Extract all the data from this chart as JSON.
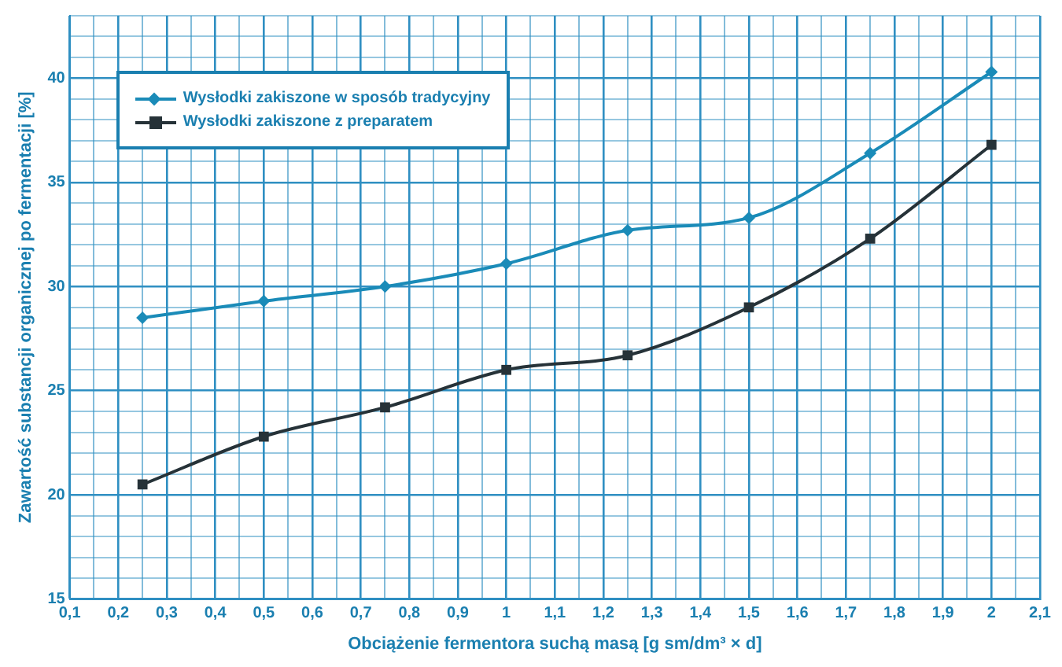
{
  "chart_data": {
    "type": "line",
    "xlabel": "Obciążenie fermentora suchą masą [g sm/dm³ × d]",
    "ylabel": "Zawartość substancji organicznej po fermentacji [%]",
    "x": [
      0.25,
      0.5,
      0.75,
      1,
      1.25,
      1.5,
      1.75,
      2
    ],
    "series": [
      {
        "name": "Wysłodki zakiszone w sposób tradycyjny",
        "color": "#1a8bb8",
        "marker": "diamond",
        "values": [
          28.5,
          29.3,
          30.0,
          31.1,
          32.7,
          33.3,
          36.4,
          40.3
        ]
      },
      {
        "name": "Wysłodki zakiszone z preparatem",
        "color": "#263238",
        "marker": "square",
        "values": [
          20.5,
          22.8,
          24.2,
          26.0,
          26.7,
          29.0,
          32.3,
          36.8
        ]
      }
    ],
    "xlim": [
      0.1,
      2.1
    ],
    "xticks": [
      {
        "value": 0.1,
        "label": "0,1"
      },
      {
        "value": 0.15,
        "label": null
      },
      {
        "value": 0.2,
        "label": "0,2"
      },
      {
        "value": 0.25,
        "label": null
      },
      {
        "value": 0.3,
        "label": "0,3"
      },
      {
        "value": 0.35,
        "label": null
      },
      {
        "value": 0.4,
        "label": "0,4"
      },
      {
        "value": 0.45,
        "label": null
      },
      {
        "value": 0.5,
        "label": "0,5"
      },
      {
        "value": 0.55,
        "label": null
      },
      {
        "value": 0.6,
        "label": "0,6"
      },
      {
        "value": 0.65,
        "label": null
      },
      {
        "value": 0.7,
        "label": "0,7"
      },
      {
        "value": 0.75,
        "label": null
      },
      {
        "value": 0.8,
        "label": "0,8"
      },
      {
        "value": 0.85,
        "label": null
      },
      {
        "value": 0.9,
        "label": "0,9"
      },
      {
        "value": 0.95,
        "label": null
      },
      {
        "value": 1,
        "label": "1"
      },
      {
        "value": 1.05,
        "label": null
      },
      {
        "value": 1.1,
        "label": "1,1"
      },
      {
        "value": 1.15,
        "label": null
      },
      {
        "value": 1.2,
        "label": "1,2"
      },
      {
        "value": 1.25,
        "label": null
      },
      {
        "value": 1.3,
        "label": "1,3"
      },
      {
        "value": 1.35,
        "label": null
      },
      {
        "value": 1.4,
        "label": "1,4"
      },
      {
        "value": 1.45,
        "label": null
      },
      {
        "value": 1.5,
        "label": "1,5"
      },
      {
        "value": 1.55,
        "label": null
      },
      {
        "value": 1.6,
        "label": "1,6"
      },
      {
        "value": 1.65,
        "label": null
      },
      {
        "value": 1.7,
        "label": "1,7"
      },
      {
        "value": 1.75,
        "label": null
      },
      {
        "value": 1.8,
        "label": "1,8"
      },
      {
        "value": 1.85,
        "label": null
      },
      {
        "value": 1.9,
        "label": "1,9"
      },
      {
        "value": 1.95,
        "label": null
      },
      {
        "value": 2,
        "label": "2"
      },
      {
        "value": 2.05,
        "label": null
      },
      {
        "value": 2.1,
        "label": "2,1"
      }
    ],
    "ylim": [
      15,
      43
    ],
    "yticks": [
      15,
      {
        "value": 16,
        "label": null
      },
      {
        "value": 17,
        "label": null
      },
      {
        "value": 18,
        "label": null
      },
      {
        "value": 19,
        "label": null
      },
      20,
      {
        "value": 21,
        "label": null
      },
      {
        "value": 22,
        "label": null
      },
      {
        "value": 23,
        "label": null
      },
      {
        "value": 24,
        "label": null
      },
      25,
      {
        "value": 26,
        "label": null
      },
      {
        "value": 27,
        "label": null
      },
      {
        "value": 28,
        "label": null
      },
      {
        "value": 29,
        "label": null
      },
      30,
      {
        "value": 31,
        "label": null
      },
      {
        "value": 32,
        "label": null
      },
      {
        "value": 33,
        "label": null
      },
      {
        "value": 34,
        "label": null
      },
      35,
      {
        "value": 36,
        "label": null
      },
      {
        "value": 37,
        "label": null
      },
      {
        "value": 38,
        "label": null
      },
      {
        "value": 39,
        "label": null
      },
      40,
      {
        "value": 41,
        "label": null
      },
      {
        "value": 42,
        "label": null
      },
      {
        "value": 43,
        "label": null
      }
    ],
    "grid": true,
    "legend": "top left",
    "line_style": "solid"
  }
}
